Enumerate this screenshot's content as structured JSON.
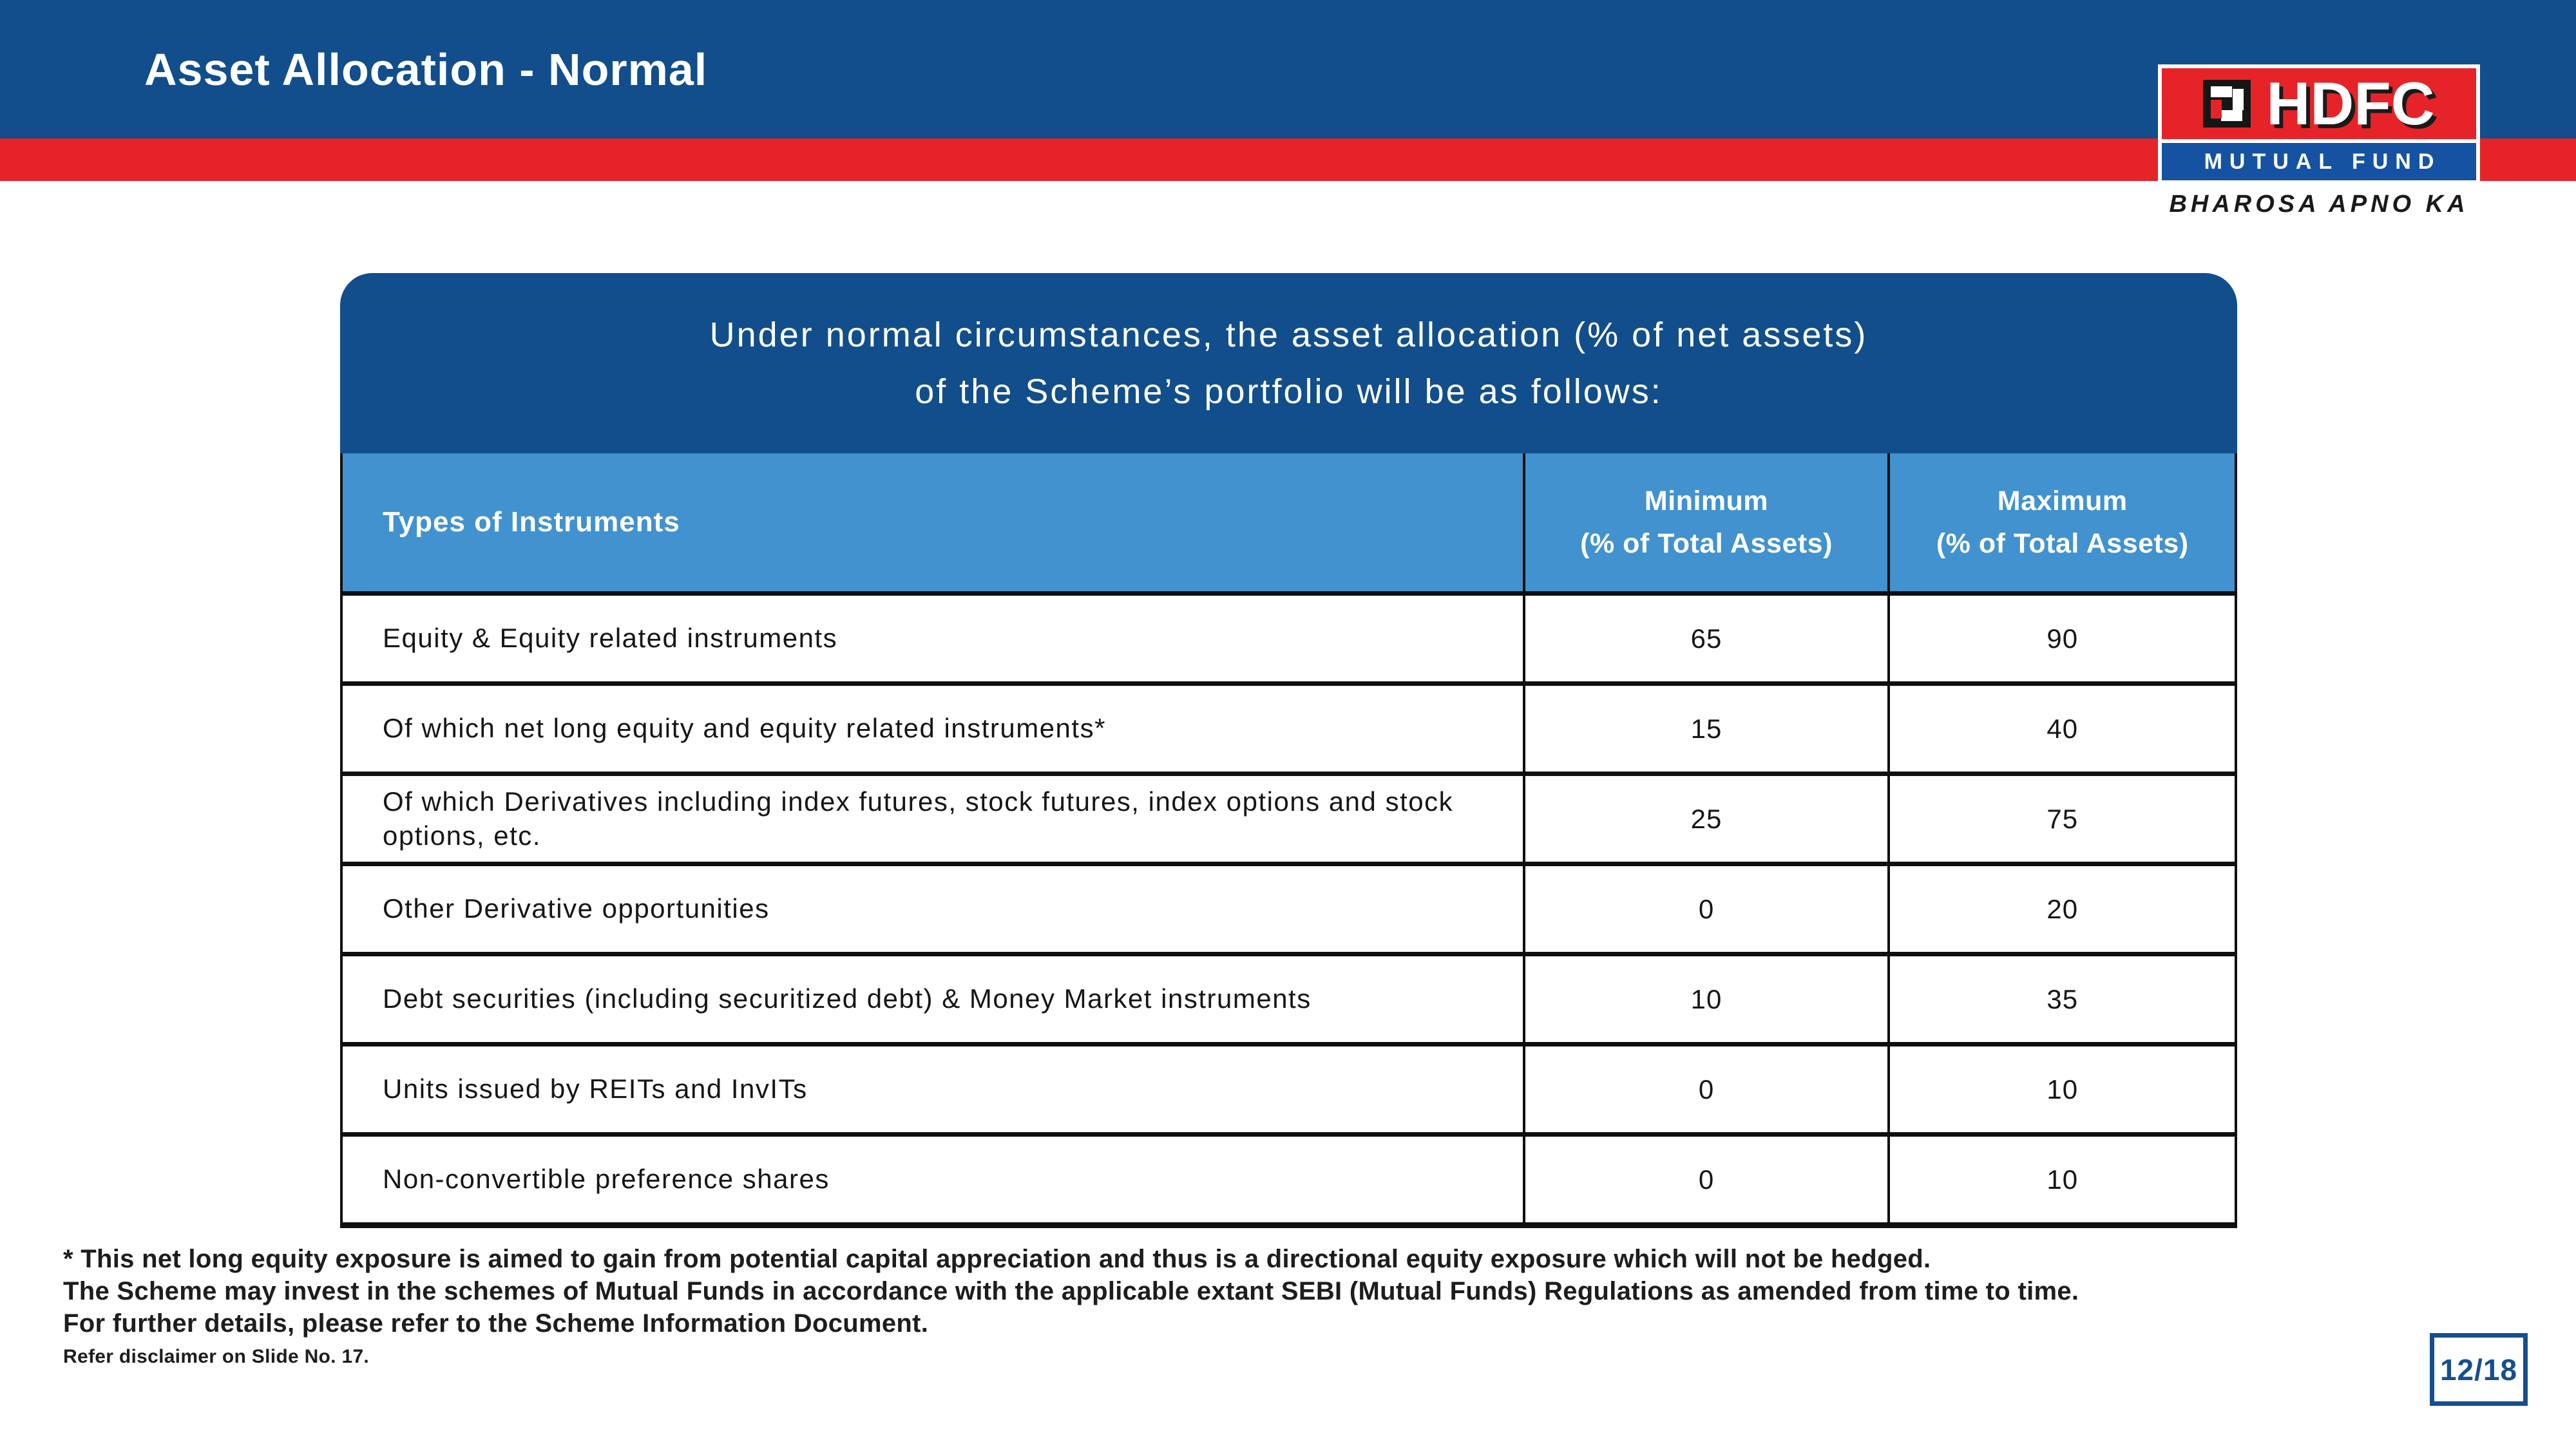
{
  "header": {
    "title": "Asset Allocation - Normal"
  },
  "logo": {
    "brand": "HDFC",
    "subtitle": "MUTUAL FUND",
    "tagline": "BHAROSA APNO KA"
  },
  "banner": {
    "line1": "Under normal circumstances, the asset allocation (% of net assets)",
    "line2": "of the Scheme’s portfolio will be as follows:"
  },
  "table": {
    "headers": {
      "instruments": "Types of Instruments",
      "min_line1": "Minimum",
      "min_line2": "(% of Total Assets)",
      "max_line1": "Maximum",
      "max_line2": "(% of Total Assets)"
    },
    "rows": [
      {
        "instrument": "Equity & Equity related instruments",
        "min": "65",
        "max": "90"
      },
      {
        "instrument": "Of which net long equity and equity related instruments*",
        "min": "15",
        "max": "40"
      },
      {
        "instrument": "Of which Derivatives including index futures, stock futures, index options and stock options, etc.",
        "min": "25",
        "max": "75"
      },
      {
        "instrument": "Other Derivative opportunities",
        "min": "0",
        "max": "20"
      },
      {
        "instrument": "Debt securities (including securitized debt) & Money Market instruments",
        "min": "10",
        "max": "35"
      },
      {
        "instrument": "Units issued by REITs and InvITs",
        "min": "0",
        "max": "10"
      },
      {
        "instrument": "Non-convertible preference shares",
        "min": "0",
        "max": "10"
      }
    ]
  },
  "footnotes": {
    "line1": "* This net long equity exposure is aimed to gain from potential capital appreciation and thus is a directional equity exposure which will not be hedged.",
    "line2": "The Scheme may invest in the schemes of Mutual Funds in accordance with the applicable extant SEBI (Mutual Funds) Regulations as amended from time to time.",
    "line3": "For further details, please refer to the Scheme Information Document.",
    "disclaimer": "Refer disclaimer on Slide No. 17."
  },
  "page_indicator": {
    "label": "12/18"
  },
  "colors": {
    "primary_blue": "#114E8B",
    "brand_red": "#E62329",
    "table_header_blue": "#4192CE",
    "logo_band_blue": "#1553A2",
    "page_box_blue": "#164F8E"
  }
}
